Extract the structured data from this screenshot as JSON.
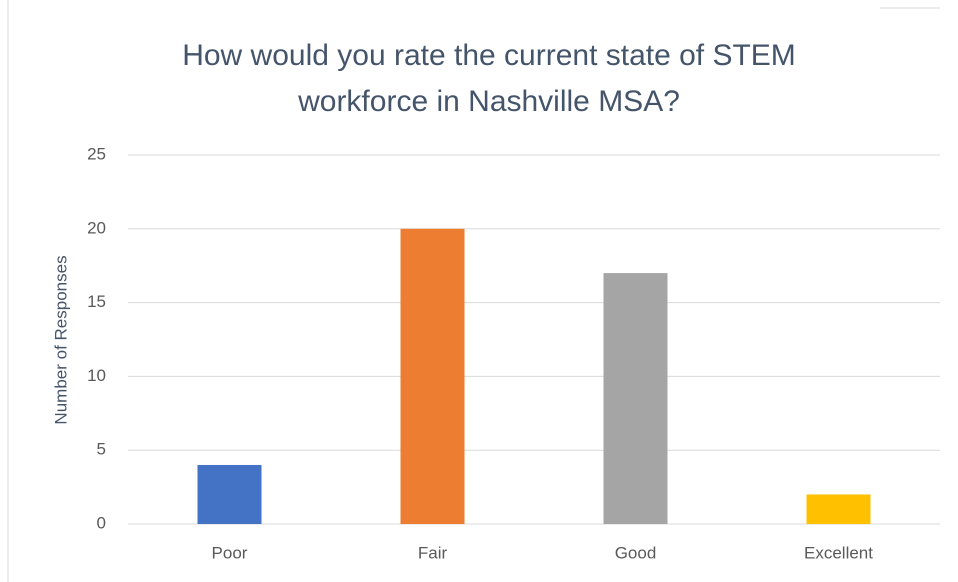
{
  "chart_data": {
    "type": "bar",
    "title": [
      "How would you rate the current state of STEM",
      "workforce in Nashville MSA?"
    ],
    "y_label": "Number of Responses",
    "categories": [
      "Poor",
      "Fair",
      "Good",
      "Excellent"
    ],
    "values": [
      4,
      20,
      17,
      2
    ],
    "colors": [
      "#4472c4",
      "#ed7d31",
      "#a5a5a5",
      "#ffc000"
    ],
    "ylim": [
      0,
      25
    ],
    "yticks": [
      0,
      5,
      10,
      15,
      20,
      25
    ],
    "grid": true
  }
}
